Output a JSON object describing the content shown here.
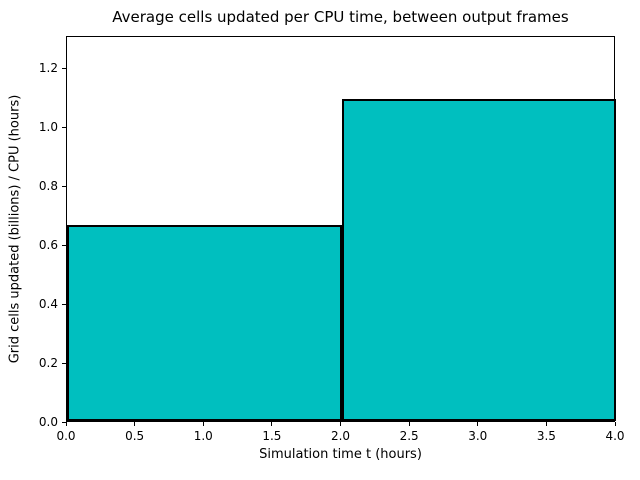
{
  "chart_data": {
    "type": "bar",
    "title": "Average cells updated per CPU time, between output frames",
    "xlabel": "Simulation time t (hours)",
    "ylabel": "Grid cells updated (billions) / CPU (hours)",
    "xlim": [
      0.0,
      4.0
    ],
    "ylim": [
      0.0,
      1.31
    ],
    "x_ticks": [
      0.0,
      0.5,
      1.0,
      1.5,
      2.0,
      2.5,
      3.0,
      3.5,
      4.0
    ],
    "y_ticks": [
      0.0,
      0.2,
      0.4,
      0.6,
      0.8,
      1.0,
      1.2
    ],
    "tick_decimals": 1,
    "bars": [
      {
        "x_start": 0.0,
        "x_end": 2.0,
        "value": 0.666
      },
      {
        "x_start": 2.0,
        "x_end": 4.0,
        "value": 1.093
      }
    ],
    "bar_fill_color": "#00bfbf",
    "bar_edge_color": "#000000",
    "axis_color": "#000000",
    "grid": false,
    "legend_position": "none"
  }
}
